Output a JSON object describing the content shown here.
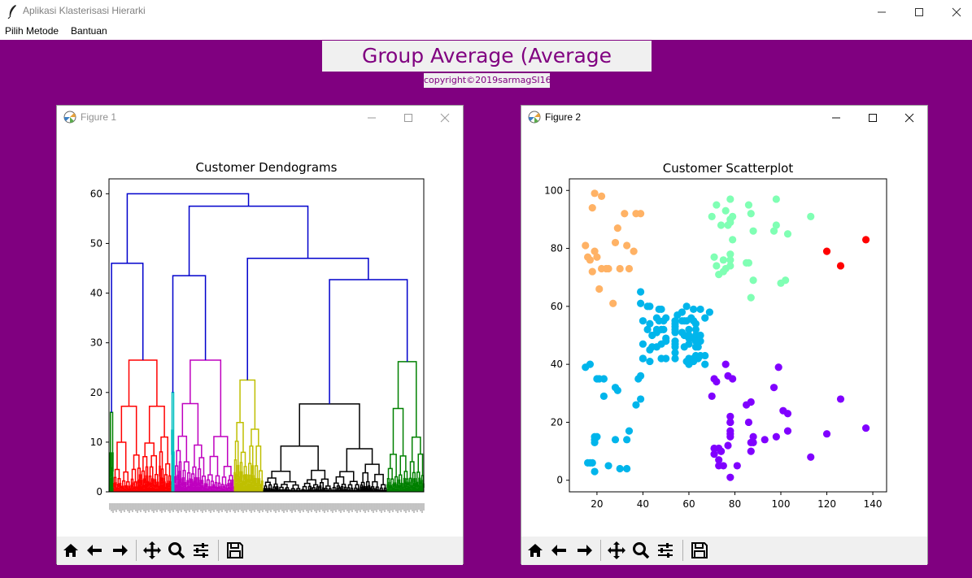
{
  "window": {
    "title": "Aplikasi Klasterisasi Hierarki",
    "icon": "feather-icon"
  },
  "menu": [
    {
      "label": "Pilih Metode"
    },
    {
      "label": "Bantuan"
    }
  ],
  "heading": "Group Average (Average Distance)",
  "copyright": "copyright©2019sarmagSI16",
  "colors": {
    "background": "#800080",
    "heading_text": "#800080"
  },
  "figures": [
    {
      "title": "Figure 1",
      "chart_data": {
        "type": "dendrogram",
        "title": "Customer Dendograms",
        "ylim": [
          0,
          63
        ],
        "yticks": [
          0,
          10,
          20,
          30,
          40,
          50,
          60
        ],
        "top_merges": [
          {
            "height": 60,
            "color": "#0000cc"
          },
          {
            "height": 57.5,
            "color": "#0000cc"
          },
          {
            "height": 47,
            "color": "#0000cc"
          },
          {
            "height": 46,
            "color": "#0000cc"
          },
          {
            "height": 43.5,
            "color": "#0000cc"
          },
          {
            "height": 42.7,
            "color": "#0000cc"
          }
        ],
        "clusters": [
          {
            "color": "#008000",
            "height": 16
          },
          {
            "color": "#ff0000",
            "height": 26.5
          },
          {
            "color": "#00bfbf",
            "height": 20
          },
          {
            "color": "#bf00bf",
            "height": 26.5
          },
          {
            "color": "#bfbf00",
            "height": 22.5
          },
          {
            "color": "#000000",
            "height": 17.7
          },
          {
            "color": "#008000",
            "height": 26.2
          }
        ]
      }
    },
    {
      "title": "Figure 2",
      "chart_data": {
        "type": "scatter",
        "title": "Customer Scatterplot",
        "xlim": [
          8,
          146
        ],
        "ylim": [
          -4,
          104
        ],
        "xticks": [
          20,
          40,
          60,
          80,
          100,
          120,
          140
        ],
        "yticks": [
          0,
          20,
          40,
          60,
          80,
          100
        ],
        "series": [
          {
            "color": "#ffb265",
            "points": [
              [
                15,
                81
              ],
              [
                16,
                77
              ],
              [
                17,
                76
              ],
              [
                18,
                94
              ],
              [
                18,
                72
              ],
              [
                19,
                99
              ],
              [
                19,
                79
              ],
              [
                20,
                77
              ],
              [
                21,
                66
              ],
              [
                22,
                98
              ],
              [
                22,
                73
              ],
              [
                24,
                73
              ],
              [
                25,
                73
              ],
              [
                27,
                61
              ],
              [
                28,
                82
              ],
              [
                29,
                87
              ],
              [
                30,
                73
              ],
              [
                32,
                92
              ],
              [
                33,
                81
              ],
              [
                34,
                73
              ],
              [
                36,
                79
              ],
              [
                37,
                92
              ],
              [
                39,
                92
              ]
            ]
          },
          {
            "color": "#80ffb4",
            "points": [
              [
                70,
                91
              ],
              [
                71,
                77
              ],
              [
                72,
                95
              ],
              [
                72,
                74
              ],
              [
                73,
                71
              ],
              [
                74,
                88
              ],
              [
                75,
                72
              ],
              [
                75,
                76
              ],
              [
                76,
                93
              ],
              [
                76,
                73
              ],
              [
                77,
                88
              ],
              [
                78,
                97
              ],
              [
                78,
                89
              ],
              [
                78,
                90
              ],
              [
                78,
                74
              ],
              [
                78,
                78
              ],
              [
                78,
                76
              ],
              [
                79,
                91
              ],
              [
                79,
                83
              ],
              [
                85,
                75
              ],
              [
                86,
                95
              ],
              [
                86,
                75
              ],
              [
                87,
                92
              ],
              [
                87,
                63
              ],
              [
                88,
                86
              ],
              [
                88,
                69
              ],
              [
                97,
                86
              ],
              [
                98,
                97
              ],
              [
                98,
                88
              ],
              [
                100,
                68
              ],
              [
                102,
                69
              ],
              [
                103,
                85
              ],
              [
                113,
                91
              ]
            ]
          },
          {
            "color": "#ff0000",
            "points": [
              [
                120,
                79
              ],
              [
                126,
                74
              ],
              [
                137,
                83
              ]
            ]
          },
          {
            "color": "#00b5eb",
            "points": [
              [
                15,
                39
              ],
              [
                16,
                6
              ],
              [
                17,
                40
              ],
              [
                17,
                6
              ],
              [
                18,
                6
              ],
              [
                19,
                3
              ],
              [
                19,
                14
              ],
              [
                19,
                15
              ],
              [
                19,
                13
              ],
              [
                20,
                15
              ],
              [
                20,
                35
              ],
              [
                21,
                35
              ],
              [
                23,
                29
              ],
              [
                23,
                35
              ],
              [
                25,
                5
              ],
              [
                28,
                14
              ],
              [
                28,
                32
              ],
              [
                29,
                31
              ],
              [
                30,
                4
              ],
              [
                33,
                4
              ],
              [
                33,
                14
              ],
              [
                34,
                17
              ],
              [
                37,
                26
              ],
              [
                38,
                35
              ],
              [
                39,
                36
              ],
              [
                39,
                28
              ],
              [
                39,
                61
              ],
              [
                39,
                65
              ],
              [
                40,
                55
              ],
              [
                40,
                47
              ],
              [
                40,
                42
              ],
              [
                40,
                42
              ],
              [
                42,
                52
              ],
              [
                42,
                60
              ],
              [
                43,
                54
              ],
              [
                43,
                60
              ],
              [
                43,
                45
              ],
              [
                43,
                41
              ],
              [
                44,
                50
              ],
              [
                44,
                46
              ],
              [
                46,
                46
              ],
              [
                46,
                51
              ],
              [
                46,
                56
              ],
              [
                46,
                52
              ],
              [
                47,
                59
              ],
              [
                47,
                55
              ],
              [
                48,
                52
              ],
              [
                48,
                59
              ],
              [
                48,
                47
              ],
              [
                48,
                42
              ],
              [
                49,
                55
              ],
              [
                49,
                52
              ],
              [
                50,
                56
              ],
              [
                50,
                49
              ],
              [
                50,
                48
              ],
              [
                50,
                42
              ],
              [
                54,
                54
              ],
              [
                54,
                46
              ],
              [
                54,
                44
              ],
              [
                54,
                53
              ],
              [
                54,
                55
              ],
              [
                54,
                48
              ],
              [
                54,
                52
              ],
              [
                54,
                42
              ],
              [
                54,
                51
              ],
              [
                54,
                47
              ],
              [
                55,
                57
              ],
              [
                57,
                58
              ],
              [
                57,
                55
              ],
              [
                57,
                51
              ],
              [
                58,
                46
              ],
              [
                58,
                55
              ],
              [
                58,
                50
              ],
              [
                59,
                60
              ],
              [
                59,
                55
              ],
              [
                59,
                41
              ],
              [
                60,
                52
              ],
              [
                60,
                49
              ],
              [
                60,
                47
              ],
              [
                60,
                40
              ],
              [
                60,
                42
              ],
              [
                60,
                50
              ],
              [
                61,
                49
              ],
              [
                61,
                56
              ],
              [
                62,
                41
              ],
              [
                62,
                59
              ],
              [
                62,
                55
              ],
              [
                62,
                42
              ],
              [
                63,
                50
              ],
              [
                63,
                46
              ],
              [
                63,
                43
              ],
              [
                63,
                48
              ],
              [
                63,
                52
              ],
              [
                63,
                54
              ],
              [
                64,
                42
              ],
              [
                64,
                46
              ],
              [
                65,
                48
              ],
              [
                65,
                50
              ],
              [
                65,
                43
              ],
              [
                65,
                59
              ],
              [
                67,
                56
              ],
              [
                67,
                40
              ],
              [
                67,
                43
              ],
              [
                69,
                58
              ]
            ]
          },
          {
            "color": "#8000ff",
            "points": [
              [
                70,
                29
              ],
              [
                71,
                11
              ],
              [
                71,
                9
              ],
              [
                71,
                35
              ],
              [
                72,
                34
              ],
              [
                73,
                5
              ],
              [
                73,
                11
              ],
              [
                73,
                7
              ],
              [
                74,
                10
              ],
              [
                74,
                10
              ],
              [
                75,
                5
              ],
              [
                76,
                40
              ],
              [
                77,
                12
              ],
              [
                77,
                36
              ],
              [
                78,
                22
              ],
              [
                78,
                20
              ],
              [
                78,
                16
              ],
              [
                78,
                1
              ],
              [
                78,
                17
              ],
              [
                78,
                15
              ],
              [
                78,
                20
              ],
              [
                79,
                35
              ],
              [
                81,
                5
              ],
              [
                85,
                26
              ],
              [
                86,
                20
              ],
              [
                87,
                27
              ],
              [
                87,
                13
              ],
              [
                87,
                10
              ],
              [
                88,
                13
              ],
              [
                88,
                15
              ],
              [
                93,
                14
              ],
              [
                97,
                32
              ],
              [
                98,
                15
              ],
              [
                99,
                39
              ],
              [
                101,
                24
              ],
              [
                103,
                17
              ],
              [
                103,
                23
              ],
              [
                113,
                8
              ],
              [
                120,
                16
              ],
              [
                126,
                28
              ],
              [
                137,
                18
              ]
            ]
          }
        ]
      }
    }
  ],
  "toolbar": [
    {
      "name": "home-icon",
      "label": "Home"
    },
    {
      "name": "back-arrow-icon",
      "label": "Back"
    },
    {
      "name": "forward-arrow-icon",
      "label": "Forward"
    },
    {
      "name": "pan-icon",
      "label": "Pan"
    },
    {
      "name": "zoom-icon",
      "label": "Zoom"
    },
    {
      "name": "configure-icon",
      "label": "Configure"
    },
    {
      "name": "save-icon",
      "label": "Save"
    }
  ]
}
